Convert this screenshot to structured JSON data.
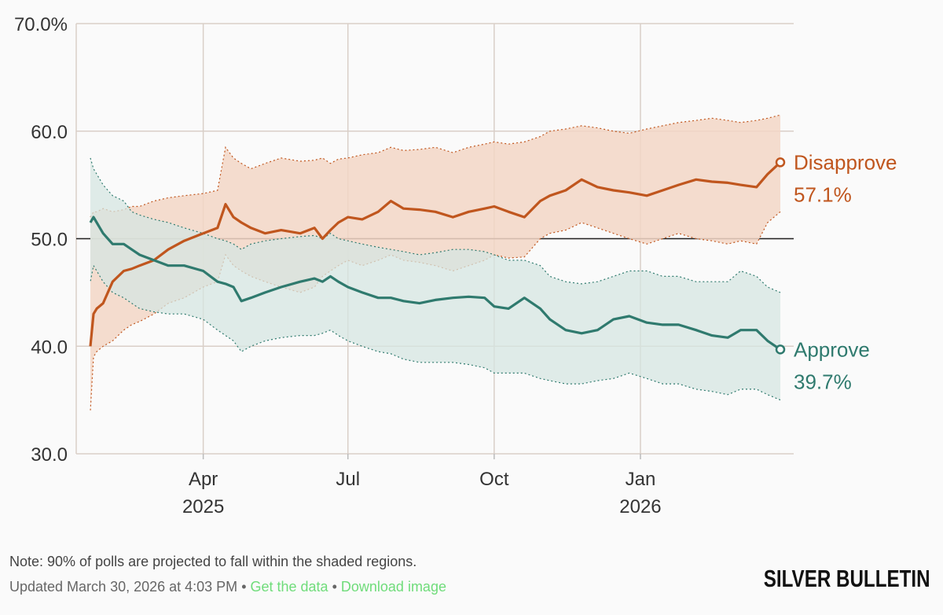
{
  "chart_data": {
    "type": "line",
    "title": "",
    "xlabel": "",
    "ylabel": "",
    "ylim": [
      30,
      70
    ],
    "y_ticks": [
      {
        "value": 70,
        "label": "70.0%"
      },
      {
        "value": 60,
        "label": "60.0"
      },
      {
        "value": 50,
        "label": "50.0"
      },
      {
        "value": 40,
        "label": "40.0"
      },
      {
        "value": 30,
        "label": "30.0"
      }
    ],
    "reference_line": 50,
    "x_domain": [
      "2025-01-20",
      "2026-03-30"
    ],
    "x_ticks": [
      {
        "date": "2025-04-01",
        "label": "Apr",
        "year": "2025"
      },
      {
        "date": "2025-07-01",
        "label": "Jul",
        "year": ""
      },
      {
        "date": "2025-10-01",
        "label": "Oct",
        "year": ""
      },
      {
        "date": "2026-01-01",
        "label": "Jan",
        "year": "2026"
      }
    ],
    "series": [
      {
        "name": "Disapprove",
        "color": "#c0561e",
        "band_color": "#f2d6c6",
        "end_value_label": "57.1%",
        "dates": [
          "2025-01-20",
          "2025-01-22",
          "2025-01-24",
          "2025-01-28",
          "2025-02-03",
          "2025-02-10",
          "2025-02-15",
          "2025-02-20",
          "2025-03-01",
          "2025-03-10",
          "2025-03-20",
          "2025-04-01",
          "2025-04-10",
          "2025-04-15",
          "2025-04-20",
          "2025-04-25",
          "2025-05-01",
          "2025-05-10",
          "2025-05-20",
          "2025-06-01",
          "2025-06-10",
          "2025-06-15",
          "2025-06-20",
          "2025-06-25",
          "2025-07-01",
          "2025-07-10",
          "2025-07-20",
          "2025-07-28",
          "2025-08-05",
          "2025-08-15",
          "2025-08-25",
          "2025-09-05",
          "2025-09-15",
          "2025-09-25",
          "2025-10-01",
          "2025-10-10",
          "2025-10-20",
          "2025-10-30",
          "2025-11-05",
          "2025-11-15",
          "2025-11-25",
          "2025-12-05",
          "2025-12-15",
          "2025-12-25",
          "2026-01-05",
          "2026-01-15",
          "2026-01-25",
          "2026-02-05",
          "2026-02-15",
          "2026-02-25",
          "2026-03-05",
          "2026-03-15",
          "2026-03-22",
          "2026-03-30"
        ],
        "values": [
          40.0,
          43.0,
          43.5,
          44.0,
          46.0,
          47.0,
          47.2,
          47.5,
          48.0,
          49.0,
          49.8,
          50.5,
          51.0,
          53.2,
          52.0,
          51.5,
          51.0,
          50.5,
          50.8,
          50.5,
          51.0,
          50.0,
          50.8,
          51.5,
          52.0,
          51.8,
          52.5,
          53.5,
          52.8,
          52.7,
          52.5,
          52.0,
          52.5,
          52.8,
          53.0,
          52.5,
          52.0,
          53.5,
          54.0,
          54.5,
          55.5,
          54.8,
          54.5,
          54.3,
          54.0,
          54.5,
          55.0,
          55.5,
          55.3,
          55.2,
          55.0,
          54.8,
          56.0,
          57.1
        ],
        "upper": [
          52.0,
          52.5,
          52.5,
          52.8,
          52.5,
          52.7,
          53.0,
          53.0,
          53.5,
          53.8,
          54.0,
          54.2,
          54.5,
          58.5,
          57.5,
          57.0,
          56.5,
          57.0,
          57.5,
          57.2,
          57.3,
          57.5,
          57.0,
          57.4,
          57.5,
          57.8,
          58.0,
          58.5,
          58.2,
          58.3,
          58.5,
          58.0,
          58.5,
          58.8,
          59.0,
          58.8,
          59.0,
          59.5,
          60.0,
          60.2,
          60.5,
          60.3,
          60.0,
          59.8,
          60.2,
          60.5,
          60.8,
          61.0,
          61.2,
          61.0,
          60.8,
          61.0,
          61.2,
          61.5
        ],
        "lower": [
          34.0,
          39.0,
          39.5,
          40.0,
          40.5,
          41.5,
          42.0,
          42.3,
          43.0,
          44.0,
          44.5,
          45.5,
          46.0,
          48.5,
          47.5,
          47.0,
          46.5,
          46.0,
          45.5,
          45.0,
          45.5,
          46.5,
          47.0,
          47.5,
          48.0,
          47.5,
          48.0,
          48.5,
          48.0,
          47.8,
          47.5,
          47.0,
          47.5,
          48.0,
          48.5,
          48.2,
          48.3,
          50.0,
          50.5,
          50.8,
          51.5,
          51.0,
          50.5,
          50.0,
          49.5,
          50.0,
          50.5,
          50.0,
          49.8,
          49.5,
          49.8,
          49.5,
          51.5,
          52.5
        ]
      },
      {
        "name": "Approve",
        "color": "#2f7a6e",
        "band_color": "#d6e6e1",
        "end_value_label": "39.7%",
        "dates": [
          "2025-01-20",
          "2025-01-22",
          "2025-01-24",
          "2025-01-28",
          "2025-02-03",
          "2025-02-10",
          "2025-02-15",
          "2025-02-20",
          "2025-03-01",
          "2025-03-10",
          "2025-03-20",
          "2025-04-01",
          "2025-04-10",
          "2025-04-15",
          "2025-04-20",
          "2025-04-25",
          "2025-05-01",
          "2025-05-10",
          "2025-05-20",
          "2025-06-01",
          "2025-06-10",
          "2025-06-15",
          "2025-06-20",
          "2025-06-25",
          "2025-07-01",
          "2025-07-10",
          "2025-07-20",
          "2025-07-28",
          "2025-08-05",
          "2025-08-15",
          "2025-08-25",
          "2025-09-05",
          "2025-09-15",
          "2025-09-25",
          "2025-10-01",
          "2025-10-10",
          "2025-10-20",
          "2025-10-30",
          "2025-11-05",
          "2025-11-15",
          "2025-11-25",
          "2025-12-05",
          "2025-12-15",
          "2025-12-25",
          "2026-01-05",
          "2026-01-15",
          "2026-01-25",
          "2026-02-05",
          "2026-02-15",
          "2026-02-25",
          "2026-03-05",
          "2026-03-15",
          "2026-03-22",
          "2026-03-30"
        ],
        "values": [
          51.5,
          52.0,
          51.5,
          50.5,
          49.5,
          49.5,
          49.0,
          48.5,
          48.0,
          47.5,
          47.5,
          47.0,
          46.0,
          45.8,
          45.5,
          44.2,
          44.5,
          45.0,
          45.5,
          46.0,
          46.3,
          46.0,
          46.5,
          46.0,
          45.5,
          45.0,
          44.5,
          44.5,
          44.2,
          44.0,
          44.3,
          44.5,
          44.6,
          44.5,
          43.7,
          43.5,
          44.5,
          43.5,
          42.5,
          41.5,
          41.2,
          41.5,
          42.5,
          42.8,
          42.2,
          42.0,
          42.0,
          41.5,
          41.0,
          40.8,
          41.5,
          41.5,
          40.5,
          39.7
        ],
        "upper": [
          57.5,
          56.5,
          56.0,
          55.0,
          54.0,
          53.5,
          52.5,
          52.2,
          51.8,
          51.5,
          51.0,
          50.5,
          50.0,
          49.8,
          49.5,
          49.0,
          49.5,
          49.8,
          50.0,
          50.2,
          50.3,
          50.0,
          50.5,
          50.0,
          49.8,
          49.5,
          49.2,
          49.0,
          48.8,
          48.5,
          48.7,
          49.0,
          49.0,
          48.8,
          48.5,
          48.0,
          48.0,
          47.5,
          46.5,
          46.0,
          45.8,
          46.0,
          46.5,
          47.0,
          47.0,
          46.5,
          46.5,
          46.0,
          46.0,
          46.0,
          47.0,
          46.5,
          45.5,
          45.0
        ],
        "lower": [
          46.0,
          47.5,
          47.0,
          46.0,
          45.0,
          44.5,
          44.0,
          43.5,
          43.2,
          43.0,
          43.0,
          42.5,
          41.5,
          41.0,
          40.5,
          39.5,
          40.0,
          40.5,
          40.8,
          41.0,
          41.0,
          41.2,
          41.5,
          41.0,
          40.5,
          40.0,
          39.5,
          39.3,
          38.8,
          38.5,
          38.5,
          38.5,
          38.3,
          38.0,
          37.5,
          37.5,
          37.5,
          37.0,
          36.8,
          36.5,
          36.5,
          36.8,
          37.0,
          37.5,
          37.0,
          36.5,
          36.5,
          36.0,
          35.8,
          35.5,
          36.0,
          36.0,
          35.5,
          35.0
        ]
      }
    ]
  },
  "footer": {
    "note": "Note: 90% of polls are projected to fall within the shaded regions.",
    "updated": "Updated March 30, 2026 at 4:03 PM",
    "separator1": " • ",
    "get_data": "Get the data",
    "separator2": " • ",
    "download": "Download image",
    "brand": "SILVER BULLETIN"
  }
}
